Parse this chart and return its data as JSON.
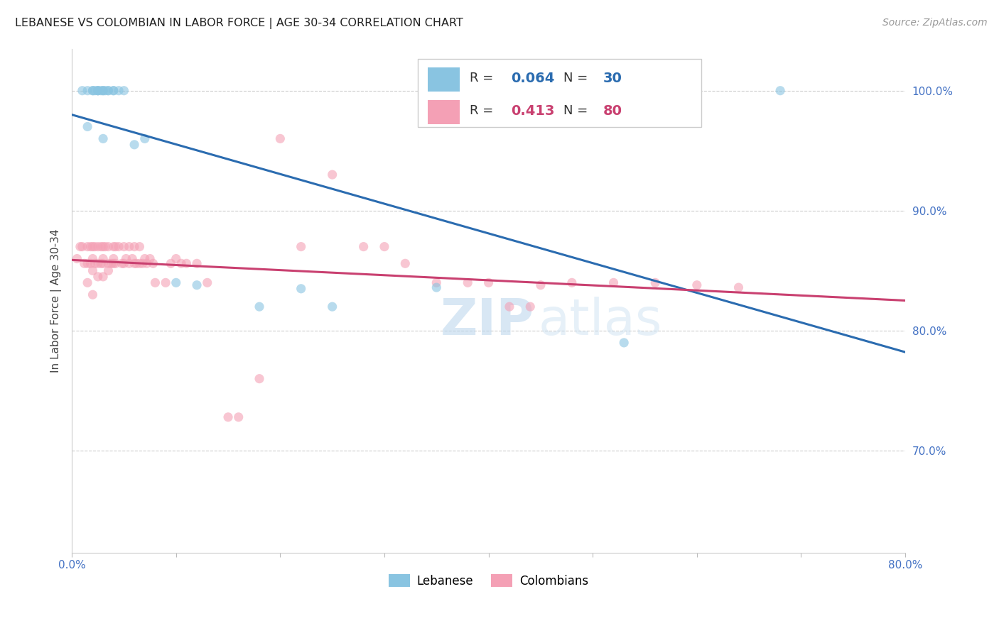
{
  "title": "LEBANESE VS COLOMBIAN IN LABOR FORCE | AGE 30-34 CORRELATION CHART",
  "source": "Source: ZipAtlas.com",
  "ylabel": "In Labor Force | Age 30-34",
  "xlim": [
    0.0,
    0.8
  ],
  "ylim": [
    0.615,
    1.035
  ],
  "ytick_positions": [
    1.0,
    0.9,
    0.8,
    0.7
  ],
  "ytick_labels": [
    "100.0%",
    "90.0%",
    "80.0%",
    "70.0%"
  ],
  "grid_color": "#cccccc",
  "background_color": "#ffffff",
  "watermark_zip": "ZIP",
  "watermark_atlas": "atlas",
  "legend_R_blue": "0.064",
  "legend_N_blue": "30",
  "legend_R_pink": "0.413",
  "legend_N_pink": "80",
  "blue_color": "#89c4e1",
  "pink_color": "#f4a0b5",
  "blue_line_color": "#2b6cb0",
  "pink_line_color": "#c94070",
  "dashed_line_color": "#e8a0b0",
  "scatter_alpha": 0.6,
  "scatter_size": 90,
  "blue_points_x": [
    0.01,
    0.015,
    0.015,
    0.02,
    0.02,
    0.022,
    0.025,
    0.025,
    0.025,
    0.028,
    0.03,
    0.03,
    0.03,
    0.032,
    0.035,
    0.035,
    0.04,
    0.04,
    0.045,
    0.05,
    0.06,
    0.07,
    0.1,
    0.12,
    0.18,
    0.22,
    0.25,
    0.35,
    0.53,
    0.68
  ],
  "blue_points_y": [
    1.0,
    1.0,
    0.97,
    1.0,
    1.0,
    1.0,
    1.0,
    1.0,
    1.0,
    1.0,
    1.0,
    1.0,
    0.96,
    1.0,
    1.0,
    1.0,
    1.0,
    1.0,
    1.0,
    1.0,
    0.955,
    0.96,
    0.84,
    0.838,
    0.82,
    0.835,
    0.82,
    0.836,
    0.79,
    1.0
  ],
  "pink_points_x": [
    0.005,
    0.008,
    0.01,
    0.012,
    0.015,
    0.015,
    0.015,
    0.018,
    0.018,
    0.02,
    0.02,
    0.02,
    0.02,
    0.022,
    0.022,
    0.025,
    0.025,
    0.025,
    0.028,
    0.028,
    0.03,
    0.03,
    0.03,
    0.03,
    0.032,
    0.035,
    0.035,
    0.035,
    0.038,
    0.04,
    0.04,
    0.04,
    0.042,
    0.042,
    0.045,
    0.048,
    0.05,
    0.05,
    0.052,
    0.055,
    0.055,
    0.058,
    0.06,
    0.06,
    0.062,
    0.065,
    0.065,
    0.068,
    0.07,
    0.072,
    0.075,
    0.078,
    0.08,
    0.09,
    0.095,
    0.1,
    0.105,
    0.11,
    0.12,
    0.13,
    0.15,
    0.16,
    0.18,
    0.2,
    0.22,
    0.25,
    0.28,
    0.3,
    0.32,
    0.35,
    0.38,
    0.4,
    0.42,
    0.44,
    0.45,
    0.48,
    0.52,
    0.56,
    0.6,
    0.64
  ],
  "pink_points_y": [
    0.86,
    0.87,
    0.87,
    0.856,
    0.87,
    0.856,
    0.84,
    0.87,
    0.856,
    0.87,
    0.86,
    0.85,
    0.83,
    0.87,
    0.856,
    0.87,
    0.856,
    0.845,
    0.87,
    0.856,
    0.87,
    0.86,
    0.856,
    0.845,
    0.87,
    0.87,
    0.856,
    0.85,
    0.856,
    0.87,
    0.86,
    0.856,
    0.87,
    0.856,
    0.87,
    0.856,
    0.87,
    0.856,
    0.86,
    0.87,
    0.856,
    0.86,
    0.87,
    0.856,
    0.856,
    0.87,
    0.856,
    0.856,
    0.86,
    0.856,
    0.86,
    0.856,
    0.84,
    0.84,
    0.856,
    0.86,
    0.856,
    0.856,
    0.856,
    0.84,
    0.728,
    0.728,
    0.76,
    0.96,
    0.87,
    0.93,
    0.87,
    0.87,
    0.856,
    0.84,
    0.84,
    0.84,
    0.82,
    0.82,
    0.838,
    0.84,
    0.84,
    0.84,
    0.838,
    0.836
  ]
}
